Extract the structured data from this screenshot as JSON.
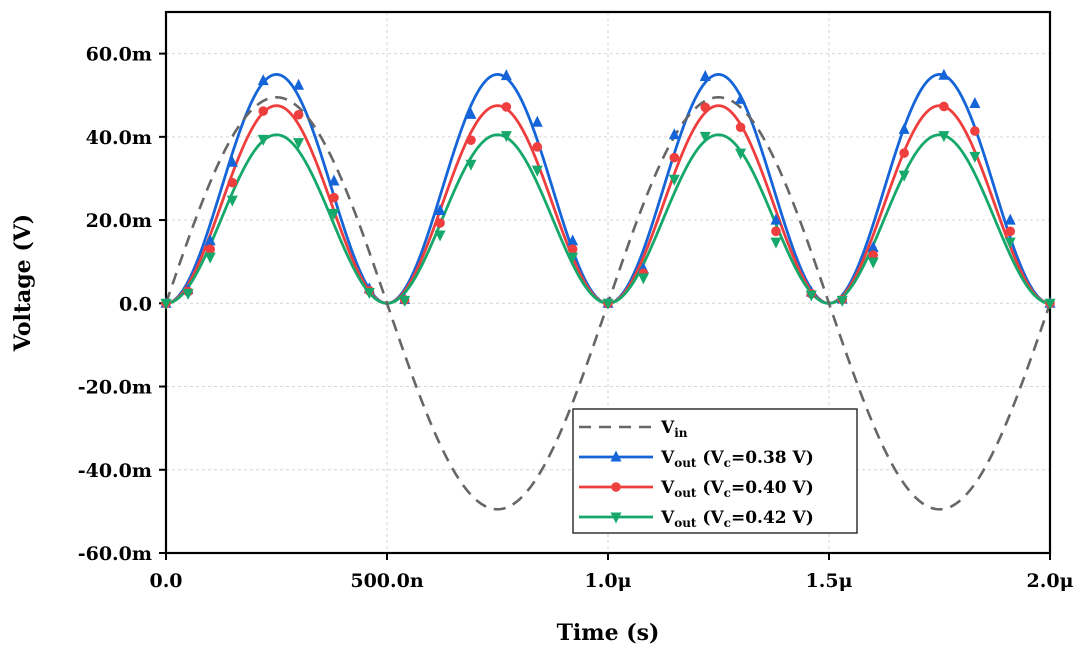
{
  "chart_data": {
    "type": "line",
    "xlabel": "Time (s)",
    "ylabel": "Voltage (V)",
    "xlim": [
      0,
      2e-06
    ],
    "ylim": [
      -0.06,
      0.07
    ],
    "grid": true,
    "legend_position": "bottom-center",
    "x_ticks": [
      {
        "value": 0,
        "label": "0.0"
      },
      {
        "value": 5e-07,
        "label": "500.0n"
      },
      {
        "value": 1e-06,
        "label": "1.0μ"
      },
      {
        "value": 1.5e-06,
        "label": "1.5μ"
      },
      {
        "value": 2e-06,
        "label": "2.0μ"
      }
    ],
    "y_ticks": [
      {
        "value": 0.06,
        "label": "60.0m"
      },
      {
        "value": 0.04,
        "label": "40.0m"
      },
      {
        "value": 0.02,
        "label": "20.0m"
      },
      {
        "value": 0.0,
        "label": "0.0"
      },
      {
        "value": -0.02,
        "label": "-20.0m"
      },
      {
        "value": -0.04,
        "label": "-40.0m"
      },
      {
        "value": -0.06,
        "label": "-60.0m"
      }
    ],
    "series": [
      {
        "name": "Vin",
        "name_main": "V",
        "name_sub": "in",
        "name_after": "",
        "color": "#666666",
        "dash": "dashed",
        "marker": "none",
        "amplitude": 0.0495,
        "frequency_hz": 1000000,
        "waveform": "sine",
        "x": [
          0,
          1e-07,
          2e-07,
          2.5e-07,
          3e-07,
          4e-07,
          5e-07,
          6e-07,
          7e-07,
          7.5e-07,
          8e-07,
          9e-07,
          1e-06,
          1.1e-06,
          1.2e-06,
          1.25e-06,
          1.3e-06,
          1.4e-06,
          1.5e-06,
          1.6e-06,
          1.7e-06,
          1.75e-06,
          1.8e-06,
          1.9e-06,
          2e-06
        ],
        "values": [
          0,
          0.0291,
          0.0471,
          0.0495,
          0.0471,
          0.0291,
          0,
          -0.0291,
          -0.0471,
          -0.0495,
          -0.0471,
          -0.0291,
          0,
          0.0291,
          0.0471,
          0.0495,
          0.0471,
          0.0291,
          0,
          -0.0291,
          -0.0471,
          -0.0495,
          -0.0471,
          -0.0291,
          0
        ]
      },
      {
        "name": "Vout (Vc=0.38 V)",
        "name_main": "V",
        "name_sub": "out",
        "name_after": " (V",
        "name_sub2": "c",
        "name_tail": "=0.38 V)",
        "color": "#1565d8",
        "dash": "solid",
        "marker": "triangle-up",
        "amplitude": 0.055,
        "waveform": "rectified-sine-squared",
        "marker_x": [
          0,
          5e-08,
          1e-07,
          1.5e-07,
          2.2e-07,
          3e-07,
          3.8e-07,
          4.6e-07,
          5.4e-07,
          6.2e-07,
          6.9e-07,
          7.7e-07,
          8.4e-07,
          9.2e-07,
          1e-06,
          1.08e-06,
          1.15e-06,
          1.22e-06,
          1.3e-06,
          1.38e-06,
          1.46e-06,
          1.53e-06,
          1.6e-06,
          1.67e-06,
          1.76e-06,
          1.83e-06,
          1.91e-06,
          2e-06
        ],
        "values": [
          0,
          0.0033,
          0.015,
          0.0339,
          0.0535,
          0.0524,
          0.0294,
          0.0035,
          0.0009,
          0.0223,
          0.0454,
          0.0547,
          0.0435,
          0.015,
          0,
          0.0083,
          0.0405,
          0.0545,
          0.049,
          0.02,
          0.0027,
          0.001,
          0.0134,
          0.0418,
          0.0548,
          0.048,
          0.02,
          0
        ]
      },
      {
        "name": "Vout (Vc=0.40 V)",
        "name_main": "V",
        "name_sub": "out",
        "name_after": " (V",
        "name_sub2": "c",
        "name_tail": "=0.40 V)",
        "color": "#ef3e3e",
        "dash": "solid",
        "marker": "circle",
        "amplitude": 0.0475,
        "waveform": "rectified-sine-squared",
        "marker_x": [
          0,
          5e-08,
          1e-07,
          1.5e-07,
          2.2e-07,
          3e-07,
          3.8e-07,
          4.6e-07,
          5.4e-07,
          6.2e-07,
          6.9e-07,
          7.7e-07,
          8.4e-07,
          9.2e-07,
          1e-06,
          1.08e-06,
          1.15e-06,
          1.22e-06,
          1.3e-06,
          1.38e-06,
          1.46e-06,
          1.53e-06,
          1.6e-06,
          1.67e-06,
          1.76e-06,
          1.83e-06,
          1.91e-06,
          2e-06
        ],
        "values": [
          0,
          0.0028,
          0.013,
          0.029,
          0.0462,
          0.0453,
          0.0254,
          0.003,
          0.0008,
          0.0193,
          0.0392,
          0.0472,
          0.0376,
          0.013,
          0,
          0.0072,
          0.035,
          0.0471,
          0.0423,
          0.0173,
          0.0023,
          0.0009,
          0.0116,
          0.0361,
          0.0473,
          0.0414,
          0.0173,
          0
        ]
      },
      {
        "name": "Vout (Vc=0.42 V)",
        "name_main": "V",
        "name_sub": "out",
        "name_after": " (V",
        "name_sub2": "c",
        "name_tail": "=0.42 V)",
        "color": "#16a86a",
        "dash": "solid",
        "marker": "triangle-down",
        "amplitude": 0.0405,
        "waveform": "rectified-sine-squared",
        "marker_x": [
          0,
          5e-08,
          1e-07,
          1.5e-07,
          2.2e-07,
          3e-07,
          3.8e-07,
          4.6e-07,
          5.4e-07,
          6.2e-07,
          6.9e-07,
          7.7e-07,
          8.4e-07,
          9.2e-07,
          1e-06,
          1.08e-06,
          1.15e-06,
          1.22e-06,
          1.3e-06,
          1.38e-06,
          1.46e-06,
          1.53e-06,
          1.6e-06,
          1.67e-06,
          1.76e-06,
          1.83e-06,
          1.91e-06,
          2e-06
        ],
        "values": [
          0,
          0.0024,
          0.0111,
          0.0248,
          0.0394,
          0.0386,
          0.0216,
          0.0026,
          0.0007,
          0.0164,
          0.0334,
          0.0403,
          0.032,
          0.0111,
          0,
          0.0061,
          0.0298,
          0.0401,
          0.0361,
          0.0147,
          0.002,
          0.0007,
          0.0099,
          0.0308,
          0.0403,
          0.0353,
          0.0147,
          0
        ]
      }
    ]
  }
}
